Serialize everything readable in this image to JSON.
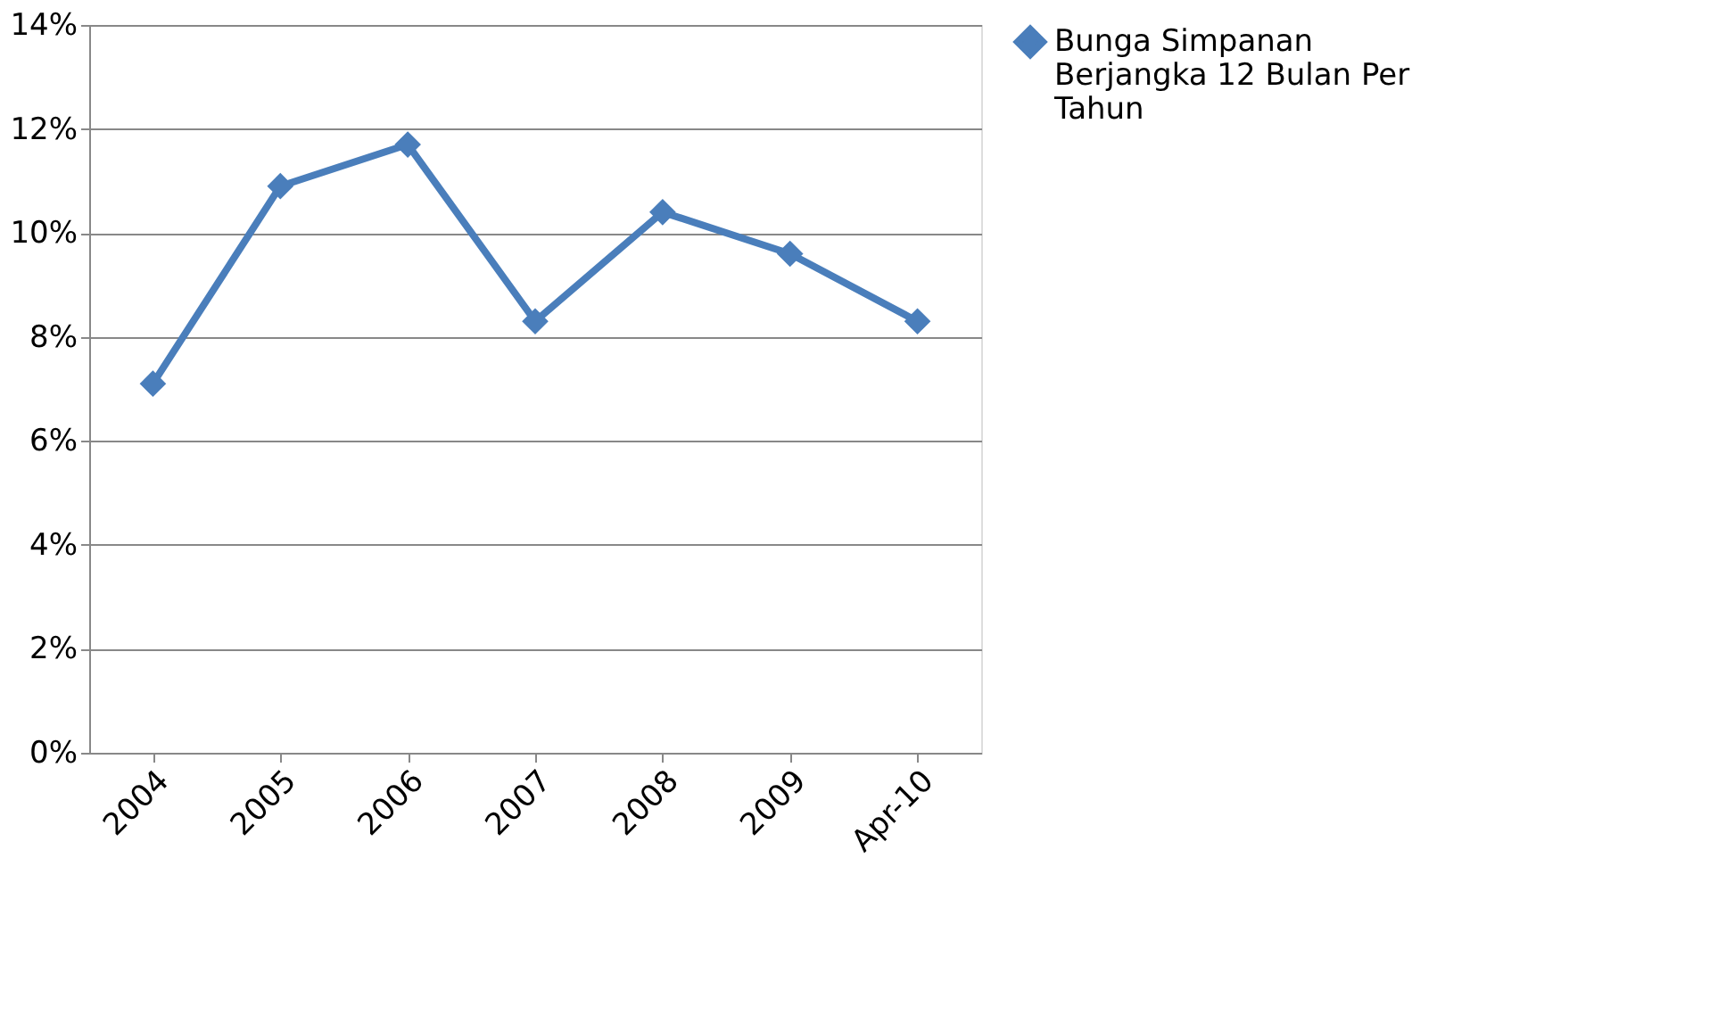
{
  "chart_data": {
    "type": "line",
    "categories": [
      "2004",
      "2005",
      "2006",
      "2007",
      "2008",
      "2009",
      "Apr-10"
    ],
    "series": [
      {
        "name": "Bunga Simpanan Berjangka 12 Bulan Per Tahun",
        "color": "#4a7ebb",
        "values": [
          7.1,
          10.9,
          11.7,
          8.3,
          10.4,
          9.6,
          8.3
        ]
      }
    ],
    "ylim": [
      0,
      14
    ],
    "yticks": [
      {
        "value": 0,
        "label": "0%"
      },
      {
        "value": 2,
        "label": "2%"
      },
      {
        "value": 4,
        "label": "4%"
      },
      {
        "value": 6,
        "label": "6%"
      },
      {
        "value": 8,
        "label": "8%"
      },
      {
        "value": 10,
        "label": "10%"
      },
      {
        "value": 12,
        "label": "12%"
      },
      {
        "value": 14,
        "label": "14%"
      }
    ],
    "grid": "y",
    "legend": "right",
    "marker": "diamond",
    "line_style": "solid"
  }
}
